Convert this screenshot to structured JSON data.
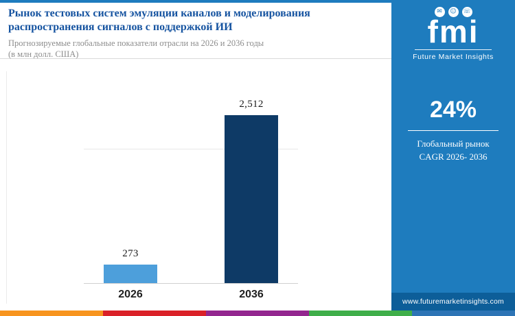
{
  "header": {
    "title": "Рынок тестовых систем эмуляции каналов и моделирования распространения сигналов с поддержкой ИИ",
    "subtitle_line1": "Прогнозируемые глобальные показатели отрасли на 2026 и 2036 годы",
    "subtitle_line2": "(в млн долл. США)"
  },
  "chart_data": {
    "type": "bar",
    "categories": [
      "2026",
      "2036"
    ],
    "values": [
      273,
      2512
    ],
    "value_labels": [
      "273",
      "2,512"
    ],
    "title": "Прогнозируемые глобальные показатели отрасли на 2026 и 2036 годы (в млн долл. США)",
    "xlabel": "",
    "ylabel": "",
    "ylim": [
      0,
      2700
    ],
    "legend": false,
    "grid": "single faint horizontal gridline",
    "bar_colors": [
      "#4D9FDB",
      "#0E3A66"
    ]
  },
  "sidebar": {
    "logo_text": "fmi",
    "logo_tagline": "Future Market Insights",
    "cagr_value": "24%",
    "cagr_label_line1": "Глобальный рынок",
    "cagr_label_line2": "CAGR 2026- 2036",
    "website": "www.futuremarketinsights.com",
    "background_color": "#1E7CBE",
    "website_bar_color": "#0D5E99"
  },
  "icons": {
    "chat": "✉",
    "person": "☺",
    "megaphone": "☏"
  },
  "footer": {
    "stripe_colors": [
      "#F7941E",
      "#DA2128",
      "#93268F",
      "#3FAE49",
      "#2D74B5"
    ]
  },
  "colors": {
    "top_border": "#1E7CBE",
    "title_text": "#1553A0",
    "subtitle_text": "#8C8C8C"
  }
}
